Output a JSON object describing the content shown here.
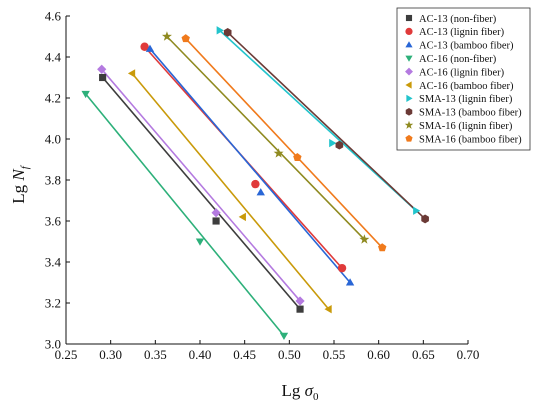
{
  "chart_data": {
    "type": "scatter",
    "xlabel": "Lg σ0",
    "ylabel": "Lg Nf",
    "xlim": [
      0.25,
      0.7
    ],
    "ylim": [
      3.0,
      4.6
    ],
    "xticks": [
      "0.25",
      "0.30",
      "0.35",
      "0.40",
      "0.45",
      "0.50",
      "0.55",
      "0.60",
      "0.65",
      "0.70"
    ],
    "yticks": [
      "3.0",
      "3.2",
      "3.4",
      "3.6",
      "3.8",
      "4.0",
      "4.2",
      "4.4",
      "4.6"
    ],
    "legend_position": "top-right",
    "grid": false,
    "series": [
      {
        "name": "AC-13 (non-fiber)",
        "color": "#3d3d3d",
        "marker": "square",
        "x": [
          0.291,
          0.418,
          0.512
        ],
        "y": [
          4.3,
          3.6,
          3.17
        ],
        "line": [
          [
            0.291,
            4.3
          ],
          [
            0.512,
            3.17
          ]
        ]
      },
      {
        "name": "AC-13 (lignin fiber)",
        "color": "#e03a3a",
        "marker": "circle",
        "x": [
          0.338,
          0.462,
          0.559
        ],
        "y": [
          4.45,
          3.78,
          3.37
        ],
        "line": [
          [
            0.338,
            4.45
          ],
          [
            0.559,
            3.37
          ]
        ]
      },
      {
        "name": "AC-13 (bamboo fiber)",
        "color": "#2966d6",
        "marker": "triangle-up",
        "x": [
          0.344,
          0.468,
          0.568
        ],
        "y": [
          4.44,
          3.74,
          3.3
        ],
        "line": [
          [
            0.344,
            4.44
          ],
          [
            0.568,
            3.3
          ]
        ]
      },
      {
        "name": "AC-16 (non-fiber)",
        "color": "#2db07a",
        "marker": "triangle-down",
        "x": [
          0.272,
          0.4,
          0.494
        ],
        "y": [
          4.22,
          3.5,
          3.04
        ],
        "line": [
          [
            0.272,
            4.22
          ],
          [
            0.494,
            3.04
          ]
        ]
      },
      {
        "name": "AC-16 (lignin fiber)",
        "color": "#b47ae0",
        "marker": "diamond",
        "x": [
          0.29,
          0.418,
          0.512
        ],
        "y": [
          4.34,
          3.64,
          3.21
        ],
        "line": [
          [
            0.29,
            4.34
          ],
          [
            0.512,
            3.21
          ]
        ]
      },
      {
        "name": "AC-16 (bamboo fiber)",
        "color": "#c99a0a",
        "marker": "triangle-left",
        "x": [
          0.324,
          0.448,
          0.544
        ],
        "y": [
          4.32,
          3.62,
          3.17
        ],
        "line": [
          [
            0.324,
            4.32
          ],
          [
            0.544,
            3.17
          ]
        ]
      },
      {
        "name": "SMA-13 (lignin fiber)",
        "color": "#22c4cc",
        "marker": "triangle-right",
        "x": [
          0.422,
          0.548,
          0.642
        ],
        "y": [
          4.53,
          3.98,
          3.65
        ],
        "line": [
          [
            0.422,
            4.53
          ],
          [
            0.642,
            3.65
          ]
        ]
      },
      {
        "name": "SMA-13 (bamboo fiber)",
        "color": "#6b3a36",
        "marker": "hexagon",
        "x": [
          0.431,
          0.556,
          0.652
        ],
        "y": [
          4.52,
          3.97,
          3.61
        ],
        "line": [
          [
            0.431,
            4.52
          ],
          [
            0.652,
            3.61
          ]
        ]
      },
      {
        "name": "SMA-16 (lignin fiber)",
        "color": "#8f8a20",
        "marker": "star",
        "x": [
          0.363,
          0.488,
          0.584
        ],
        "y": [
          4.5,
          3.93,
          3.51
        ],
        "line": [
          [
            0.363,
            4.5
          ],
          [
            0.584,
            3.51
          ]
        ]
      },
      {
        "name": "SMA-16 (bamboo fiber)",
        "color": "#f07a1c",
        "marker": "pentagon",
        "x": [
          0.384,
          0.509,
          0.604
        ],
        "y": [
          4.49,
          3.91,
          3.47
        ],
        "line": [
          [
            0.384,
            4.49
          ],
          [
            0.604,
            3.47
          ]
        ]
      }
    ]
  }
}
